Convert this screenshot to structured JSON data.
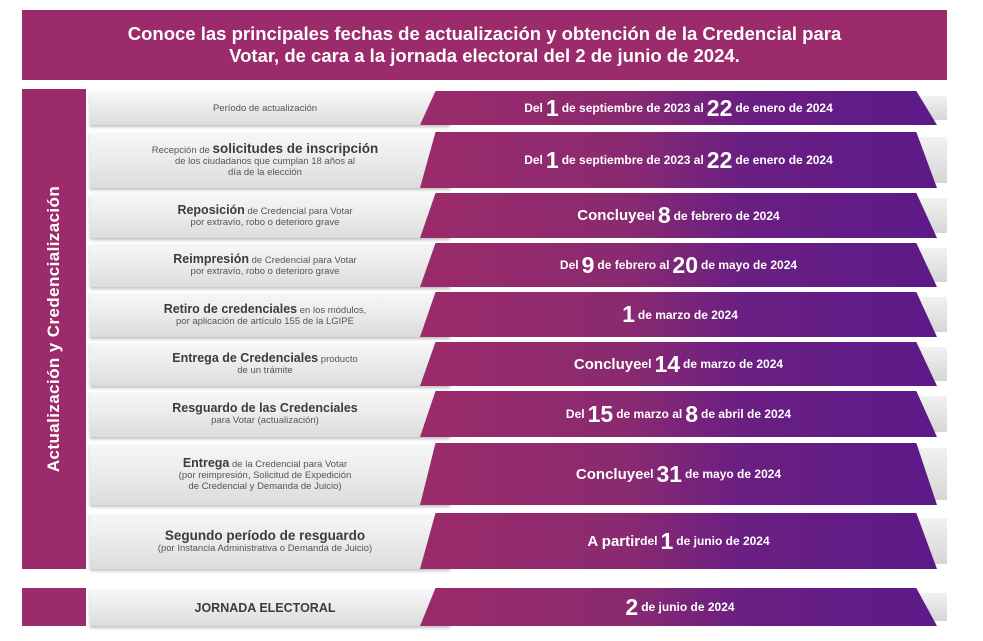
{
  "header": {
    "title_line1": "Conoce las principales fechas de actualización y obtención de la Credencial para",
    "title_line2": "Votar, de cara a la jornada electoral del 2 de junio de 2024."
  },
  "sidebar": {
    "label": "Actualización y Credencialización"
  },
  "rows": [
    {
      "desc": {
        "l1": "Período de actualización"
      },
      "date": {
        "a": "Del ",
        "n1": "1",
        "b": " de septiembre de 2023 al ",
        "n2": "22",
        "c": " de enero de 2024"
      }
    },
    {
      "desc": {
        "l1a": "Recepción de ",
        "l1b": "solicitudes de inscripción",
        "l2": "de los ciudadanos que cumplan 18 años al",
        "l3": "día de la elección"
      },
      "date": {
        "a": "Del ",
        "n1": "1",
        "b": " de septiembre de 2023 al ",
        "n2": "22",
        "c": " de enero de 2024"
      }
    },
    {
      "desc": {
        "l1a": "Reposición",
        "l1b": " de Credencial para Votar",
        "l2": "por extravío, robo o deterioro grave"
      },
      "date": {
        "a": "Concluye ",
        "b": "el ",
        "n1": "8",
        "c": " de febrero de 2024"
      }
    },
    {
      "desc": {
        "l1a": "Reimpresión",
        "l1b": " de Credencial para Votar",
        "l2": "por extravío, robo o deterioro grave"
      },
      "date": {
        "a": "Del ",
        "n1": "9",
        "b": " de febrero al ",
        "n2": "20",
        "c": " de mayo de 2024"
      }
    },
    {
      "desc": {
        "l1a": "Retiro de credenciales",
        "l1b": " en los módulos,",
        "l2": "por aplicación de artículo 155 de la LGIPE"
      },
      "date": {
        "n1": "1",
        "c": " de marzo de 2024"
      }
    },
    {
      "desc": {
        "l1a": "Entrega de Credenciales",
        "l1b": " producto",
        "l2": "de un trámite"
      },
      "date": {
        "a": "Concluye ",
        "b": "el ",
        "n1": "14",
        "c": " de marzo de 2024"
      }
    },
    {
      "desc": {
        "l1a": "Resguardo de las Credenciales",
        "l2": "para Votar (actualización)"
      },
      "date": {
        "a": "Del ",
        "n1": "15",
        "b": " de marzo al ",
        "n2": "8",
        "c": " de abril de 2024"
      }
    },
    {
      "desc": {
        "l1a": "Entrega",
        "l1b": " de la Credencial para Votar",
        "l2": "(por reimpresión, Solicitud de Expedición",
        "l3": "de Credencial y Demanda de Juicio)"
      },
      "date": {
        "a": "Concluye ",
        "b": "el ",
        "n1": "31",
        "c": " de mayo de 2024"
      }
    },
    {
      "desc": {
        "l1a": "Segundo período de resguardo",
        "l2": "(por Instancia Administrativa o Demanda de Juicio)"
      },
      "date": {
        "a": "A partir ",
        "b": "del ",
        "n1": "1",
        "c": " de junio de 2024"
      }
    }
  ],
  "election": {
    "label": "JORNADA ELECTORAL",
    "date": {
      "n1": "2",
      "c": " de junio de 2024"
    }
  }
}
